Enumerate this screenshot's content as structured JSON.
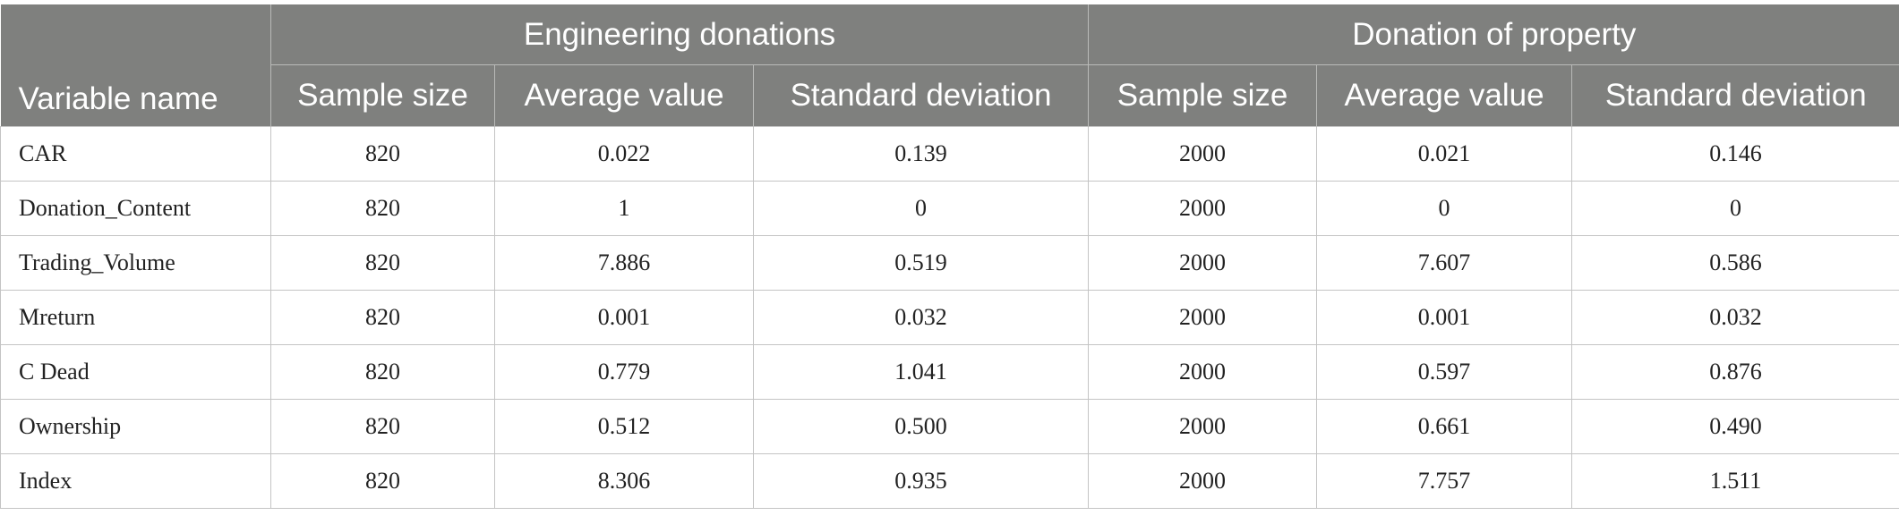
{
  "table": {
    "header": {
      "variable_name": "Variable name",
      "groups": [
        {
          "label": "Engineering donations"
        },
        {
          "label": "Donation of property"
        }
      ],
      "columns": [
        "Sample size",
        "Average value",
        "Standard deviation",
        "Sample size",
        "Average value",
        "Standard deviation"
      ]
    },
    "rows": [
      {
        "name": "CAR",
        "cells": [
          "820",
          "0.022",
          "0.139",
          "2000",
          "0.021",
          "0.146"
        ]
      },
      {
        "name": "Donation_Content",
        "cells": [
          "820",
          "1",
          "0",
          "2000",
          "0",
          "0"
        ]
      },
      {
        "name": "Trading_Volume",
        "cells": [
          "820",
          "7.886",
          "0.519",
          "2000",
          "7.607",
          "0.586"
        ]
      },
      {
        "name": "Mreturn",
        "cells": [
          "820",
          "0.001",
          "0.032",
          "2000",
          "0.001",
          "0.032"
        ]
      },
      {
        "name": "C Dead",
        "cells": [
          "820",
          "0.779",
          "1.041",
          "2000",
          "0.597",
          "0.876"
        ]
      },
      {
        "name": "Ownership",
        "cells": [
          "820",
          "0.512",
          "0.500",
          "2000",
          "0.661",
          "0.490"
        ]
      },
      {
        "name": "Index",
        "cells": [
          "820",
          "8.306",
          "0.935",
          "2000",
          "7.757",
          "1.511"
        ]
      }
    ],
    "colors": {
      "header_bg": "#7f807e",
      "header_text": "#ffffff",
      "grid": "#c4c4c4"
    }
  }
}
